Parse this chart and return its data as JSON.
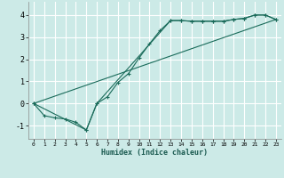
{
  "xlabel": "Humidex (Indice chaleur)",
  "bg_color": "#cceae7",
  "grid_color": "#ffffff",
  "line_color": "#1a6b5a",
  "xlim": [
    -0.5,
    23.5
  ],
  "ylim": [
    -1.6,
    4.6
  ],
  "xticks": [
    0,
    1,
    2,
    3,
    4,
    5,
    6,
    7,
    8,
    9,
    10,
    11,
    12,
    13,
    14,
    15,
    16,
    17,
    18,
    19,
    20,
    21,
    22,
    23
  ],
  "yticks": [
    -1,
    0,
    1,
    2,
    3,
    4
  ],
  "line1_x": [
    0,
    1,
    2,
    3,
    4,
    5,
    6,
    7,
    8,
    9,
    10,
    11,
    12,
    13,
    14,
    15,
    16,
    17,
    18,
    19,
    20,
    21,
    22,
    23
  ],
  "line1_y": [
    0.0,
    -0.55,
    -0.65,
    -0.7,
    -0.85,
    -1.2,
    0.0,
    0.3,
    0.95,
    1.35,
    2.05,
    2.7,
    3.3,
    3.75,
    3.75,
    3.72,
    3.72,
    3.72,
    3.72,
    3.8,
    3.85,
    4.0,
    4.0,
    3.8
  ],
  "line2_x": [
    0,
    5,
    6,
    13,
    14,
    15,
    16,
    17,
    18,
    19,
    20,
    21,
    22,
    23
  ],
  "line2_y": [
    0.0,
    -1.2,
    0.0,
    3.75,
    3.75,
    3.72,
    3.72,
    3.72,
    3.72,
    3.8,
    3.85,
    4.0,
    4.0,
    3.8
  ],
  "line3_x": [
    0,
    23
  ],
  "line3_y": [
    0.0,
    3.8
  ]
}
